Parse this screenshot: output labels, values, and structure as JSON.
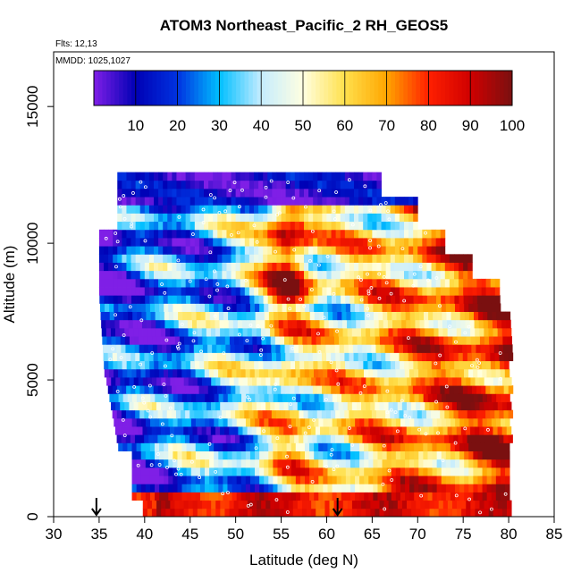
{
  "chart_data": {
    "type": "heatmap",
    "title": "ATOM3 Northeast_Pacific_2 RH_GEOS5",
    "flights_label": "Flts: 12,13",
    "date_label": "MMDD: 1025,1027",
    "xlabel": "Latitude (deg N)",
    "ylabel": "Altitude (m)",
    "xlim": [
      30,
      85
    ],
    "ylim": [
      0,
      17000
    ],
    "x_ticks": [
      30,
      35,
      40,
      45,
      50,
      55,
      60,
      65,
      70,
      75,
      80,
      85
    ],
    "y_ticks": [
      0,
      5000,
      10000,
      15000
    ],
    "colorbar": {
      "ticks": [
        10,
        20,
        30,
        40,
        50,
        60,
        70,
        80,
        90,
        100
      ],
      "range": [
        0,
        100
      ],
      "placement": "top"
    },
    "markers": [
      {
        "symbol": "arrow-down",
        "x": 34.7
      },
      {
        "symbol": "arrow-down",
        "x": 61.2
      }
    ],
    "colors": {
      "c0": "#7f1fe6",
      "c10": "#0000b5",
      "c20": "#0032e0",
      "c30": "#00bfff",
      "c40": "#c5ecff",
      "c50": "#ffffe0",
      "c60": "#ffe04c",
      "c70": "#ffa500",
      "c80": "#ff2000",
      "c90": "#d00000",
      "c100": "#7a1010"
    },
    "grid": false
  }
}
